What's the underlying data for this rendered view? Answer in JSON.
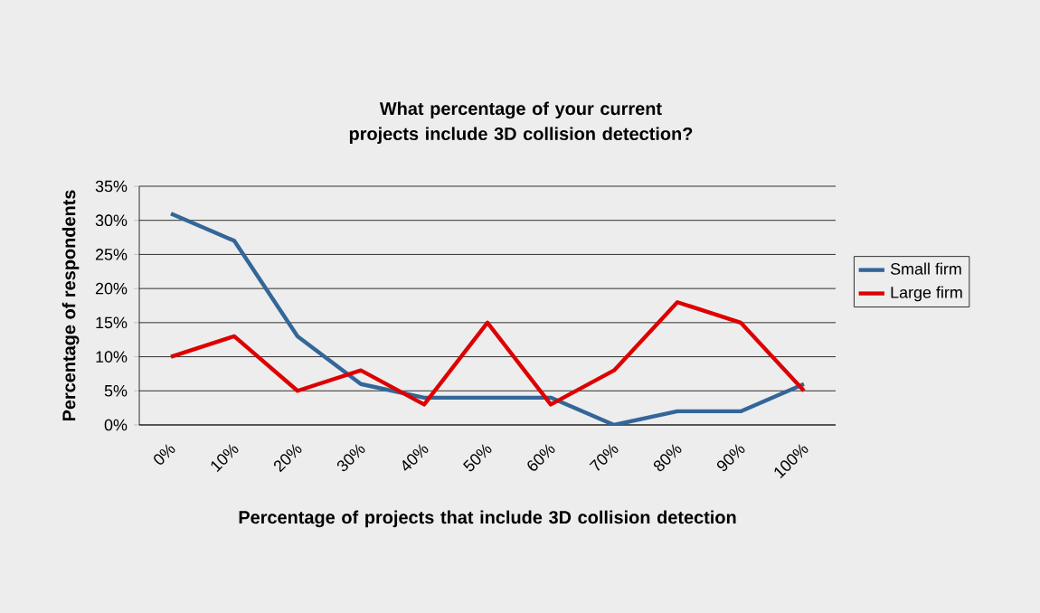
{
  "chart_data": {
    "type": "line",
    "title": "What percentage of your current projects include 3D collision detection?",
    "xlabel": "Percentage of projects that include 3D collision detection",
    "ylabel": "Percentage of respondents",
    "categories": [
      "0%",
      "10%",
      "20%",
      "30%",
      "40%",
      "50%",
      "60%",
      "70%",
      "80%",
      "90%",
      "100%"
    ],
    "series": [
      {
        "name": "Small firm",
        "color": "#336699",
        "values": [
          31,
          27,
          13,
          6,
          4,
          4,
          4,
          0,
          2,
          2,
          6
        ]
      },
      {
        "name": "Large firm",
        "color": "#dd0000",
        "values": [
          10,
          13,
          5,
          8,
          3,
          15,
          3,
          8,
          18,
          15,
          5
        ]
      }
    ],
    "ylim": [
      0,
      35
    ],
    "yticks": [
      {
        "value": 0,
        "label": "0%"
      },
      {
        "value": 5,
        "label": "5%"
      },
      {
        "value": 10,
        "label": "10%"
      },
      {
        "value": 15,
        "label": "15%"
      },
      {
        "value": 20,
        "label": "20%"
      },
      {
        "value": 25,
        "label": "25%"
      },
      {
        "value": 30,
        "label": "30%"
      },
      {
        "value": 35,
        "label": "35%"
      }
    ],
    "grid": "y",
    "legend": "right",
    "marker": "none"
  }
}
